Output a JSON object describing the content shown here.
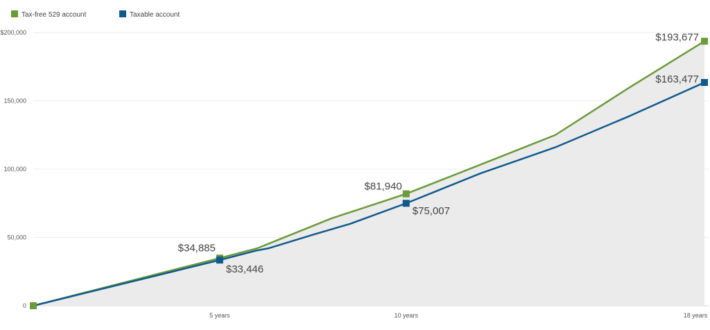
{
  "chart_data": {
    "type": "line",
    "x_ticks": [
      "5 years",
      "10 years",
      "18 years"
    ],
    "y_ticks": [
      "0",
      "50,000",
      "100,000",
      "150,000",
      "$200,000"
    ],
    "ylim": [
      0,
      200000
    ],
    "xlim": [
      0,
      18
    ],
    "series": [
      {
        "name": "Tax-free 529 account",
        "color": "#6a9a3a",
        "points": [
          [
            0,
            0
          ],
          [
            5,
            34885
          ],
          [
            6,
            42000
          ],
          [
            8,
            64000
          ],
          [
            10,
            81940
          ],
          [
            11.5,
            98000
          ],
          [
            14,
            125000
          ],
          [
            16,
            160000
          ],
          [
            18,
            193677
          ]
        ],
        "markers": [
          [
            0,
            0
          ],
          [
            5,
            34885
          ],
          [
            10,
            81940
          ],
          [
            18,
            193677
          ]
        ],
        "marker_labels": [
          "$34,885",
          "$81,940",
          "$193,677"
        ]
      },
      {
        "name": "Taxable account",
        "color": "#0f5a8c",
        "points": [
          [
            0,
            0
          ],
          [
            5,
            33446
          ],
          [
            6,
            40500
          ],
          [
            6.3,
            42000
          ],
          [
            7.5,
            52000
          ],
          [
            8.5,
            60000
          ],
          [
            10,
            75007
          ],
          [
            12,
            97000
          ],
          [
            14,
            116000
          ],
          [
            16,
            139000
          ],
          [
            18,
            163477
          ]
        ],
        "markers": [
          [
            5,
            33446
          ],
          [
            10,
            75007
          ],
          [
            18,
            163477
          ]
        ],
        "marker_labels": [
          "$33,446",
          "$75,007",
          "$163,477"
        ]
      }
    ],
    "legend": [
      {
        "label": "Tax-free 529 account",
        "color": "#6a9a3a"
      },
      {
        "label": "Taxable account",
        "color": "#0f5a8c"
      }
    ],
    "legend_position": "top-left",
    "grid": true,
    "fill_color": "#ebebeb"
  }
}
